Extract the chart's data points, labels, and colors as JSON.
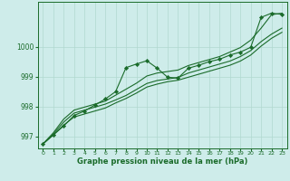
{
  "title": "Graphe pression niveau de la mer (hPa)",
  "background_color": "#ceecea",
  "grid_color": "#b0d8d0",
  "line_color": "#1a6b2a",
  "xlim": [
    -0.5,
    23.5
  ],
  "ylim": [
    996.6,
    1001.5
  ],
  "yticks": [
    997,
    998,
    999,
    1000
  ],
  "xticks": [
    0,
    1,
    2,
    3,
    4,
    5,
    6,
    7,
    8,
    9,
    10,
    11,
    12,
    13,
    14,
    15,
    16,
    17,
    18,
    19,
    20,
    21,
    22,
    23
  ],
  "series": [
    [
      996.75,
      997.05,
      997.35,
      997.7,
      997.85,
      998.05,
      998.25,
      998.5,
      999.3,
      999.42,
      999.53,
      999.28,
      998.98,
      998.95,
      999.28,
      999.38,
      999.5,
      999.58,
      999.72,
      999.82,
      999.98,
      1000.98,
      1001.12,
      1001.08
    ],
    [
      996.75,
      997.05,
      997.38,
      997.65,
      997.75,
      997.85,
      997.95,
      998.12,
      998.27,
      998.45,
      998.65,
      998.75,
      998.83,
      998.88,
      998.98,
      999.08,
      999.18,
      999.28,
      999.38,
      999.52,
      999.72,
      1000.02,
      1000.28,
      1000.48
    ],
    [
      996.75,
      997.08,
      997.48,
      997.78,
      997.88,
      997.98,
      998.08,
      998.22,
      998.37,
      998.57,
      998.77,
      998.87,
      998.92,
      998.97,
      999.12,
      999.22,
      999.32,
      999.42,
      999.52,
      999.67,
      999.87,
      1000.17,
      1000.42,
      1000.62
    ],
    [
      996.75,
      997.12,
      997.58,
      997.88,
      997.98,
      998.08,
      998.18,
      998.38,
      998.58,
      998.78,
      999.02,
      999.12,
      999.17,
      999.22,
      999.37,
      999.47,
      999.57,
      999.67,
      999.82,
      999.97,
      1000.22,
      1000.62,
      1001.07,
      1001.12
    ]
  ],
  "marker_series": 0,
  "marker": "D",
  "markersize": 2.2,
  "linewidth": 0.8
}
